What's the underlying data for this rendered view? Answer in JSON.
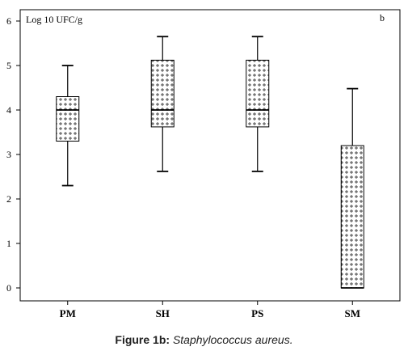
{
  "chart_data": {
    "type": "box",
    "panel_label": "b",
    "ylabel": "Log 10 UFC/g",
    "ylim": [
      -0.3,
      6.1
    ],
    "yticks": [
      0,
      1,
      2,
      3,
      4,
      5,
      6
    ],
    "categories": [
      "PM",
      "SH",
      "PS",
      "SM"
    ],
    "boxes": [
      {
        "min": 2.3,
        "q1": 3.3,
        "median": 4.0,
        "q3": 4.3,
        "max": 5.0
      },
      {
        "min": 2.62,
        "q1": 3.62,
        "median": 4.0,
        "q3": 5.12,
        "max": 5.65
      },
      {
        "min": 2.62,
        "q1": 3.62,
        "median": 4.0,
        "q3": 5.12,
        "max": 5.65
      },
      {
        "min": 0.0,
        "q1": 0.0,
        "median": 0.0,
        "q3": 3.2,
        "max": 4.48
      }
    ],
    "grid": false,
    "fill_pattern": "crosshatch-plus"
  },
  "caption": {
    "label": "Figure 1b:",
    "text": "Staphylococcus aureus."
  }
}
